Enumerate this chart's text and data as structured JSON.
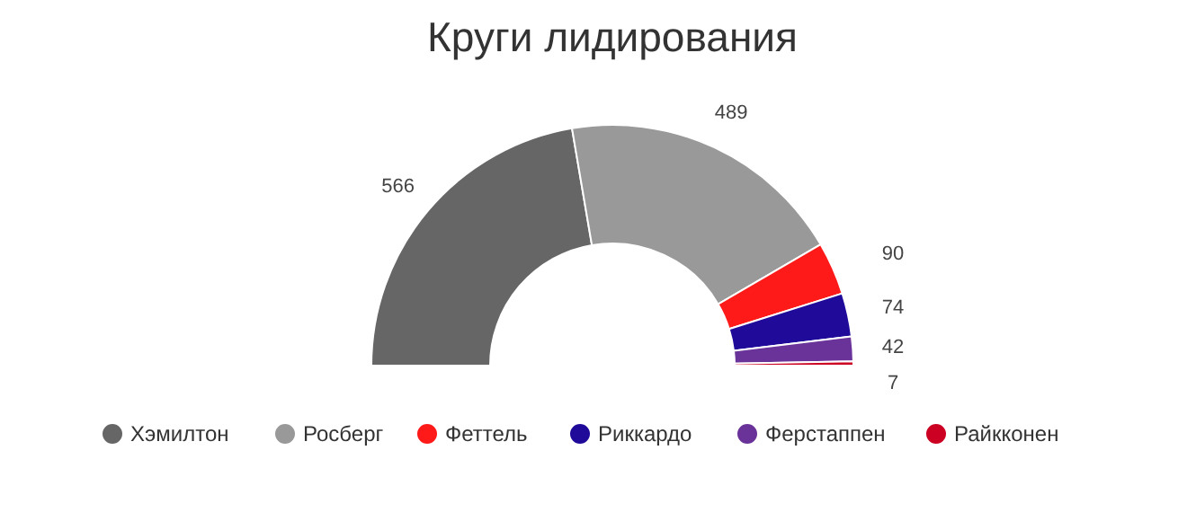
{
  "chart_data": {
    "type": "donut",
    "title": "Круги лидирования",
    "categories": [
      "Хэмилтон",
      "Росберг",
      "Феттель",
      "Риккардо",
      "Ферстаппен",
      "Райкконен"
    ],
    "values": [
      566,
      489,
      90,
      74,
      42,
      7
    ],
    "colors": [
      "#666666",
      "#999999",
      "#ff1a1a",
      "#1f0a99",
      "#6a3399",
      "#cc0022"
    ],
    "data_labels": true,
    "legend": "bottom"
  }
}
